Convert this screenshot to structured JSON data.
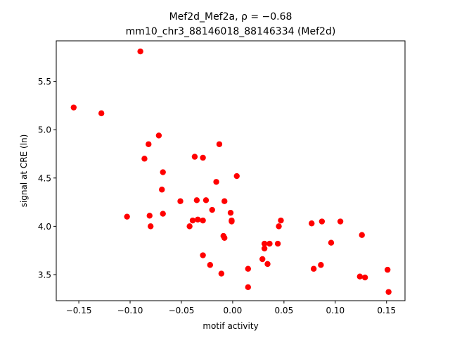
{
  "chart_data": {
    "type": "scatter",
    "title_line1": "Mef2d_Mef2a, ρ = −0.68",
    "title_line2": "mm10_chr3_88146018_88146334 (Mef2d)",
    "xlabel": "motif activity",
    "ylabel": "signal at CRE (ln)",
    "xlim": [
      -0.172,
      0.168
    ],
    "ylim": [
      3.23,
      5.92
    ],
    "xticks": [
      -0.15,
      -0.1,
      -0.05,
      0.0,
      0.05,
      0.1,
      0.15
    ],
    "xtick_labels": [
      "−0.15",
      "−0.10",
      "−0.05",
      "0.00",
      "0.05",
      "0.10",
      "0.15"
    ],
    "yticks": [
      3.5,
      4.0,
      4.5,
      5.0,
      5.5
    ],
    "ytick_labels": [
      "3.5",
      "4.0",
      "4.5",
      "5.0",
      "5.5"
    ],
    "grid": false,
    "marker_color": "#ff0000",
    "points": [
      {
        "x": -0.155,
        "y": 5.23
      },
      {
        "x": -0.128,
        "y": 5.17
      },
      {
        "x": -0.103,
        "y": 4.1
      },
      {
        "x": -0.09,
        "y": 5.81
      },
      {
        "x": -0.086,
        "y": 4.7
      },
      {
        "x": -0.082,
        "y": 4.85
      },
      {
        "x": -0.081,
        "y": 4.11
      },
      {
        "x": -0.08,
        "y": 4.0
      },
      {
        "x": -0.072,
        "y": 4.94
      },
      {
        "x": -0.069,
        "y": 4.38
      },
      {
        "x": -0.068,
        "y": 4.56
      },
      {
        "x": -0.068,
        "y": 4.13
      },
      {
        "x": -0.051,
        "y": 4.26
      },
      {
        "x": -0.042,
        "y": 4.0
      },
      {
        "x": -0.039,
        "y": 4.06
      },
      {
        "x": -0.037,
        "y": 4.72
      },
      {
        "x": -0.035,
        "y": 4.27
      },
      {
        "x": -0.034,
        "y": 4.07
      },
      {
        "x": -0.029,
        "y": 4.71
      },
      {
        "x": -0.029,
        "y": 4.06
      },
      {
        "x": -0.029,
        "y": 3.7
      },
      {
        "x": -0.026,
        "y": 4.27
      },
      {
        "x": -0.022,
        "y": 3.6
      },
      {
        "x": -0.02,
        "y": 4.17
      },
      {
        "x": -0.016,
        "y": 4.46
      },
      {
        "x": -0.013,
        "y": 4.85
      },
      {
        "x": -0.011,
        "y": 3.51
      },
      {
        "x": -0.009,
        "y": 3.9
      },
      {
        "x": -0.008,
        "y": 4.26
      },
      {
        "x": -0.008,
        "y": 3.88
      },
      {
        "x": -0.002,
        "y": 4.14
      },
      {
        "x": -0.001,
        "y": 4.06
      },
      {
        "x": -0.001,
        "y": 4.05
      },
      {
        "x": 0.004,
        "y": 4.52
      },
      {
        "x": 0.015,
        "y": 3.56
      },
      {
        "x": 0.015,
        "y": 3.37
      },
      {
        "x": 0.029,
        "y": 3.66
      },
      {
        "x": 0.031,
        "y": 3.77
      },
      {
        "x": 0.031,
        "y": 3.82
      },
      {
        "x": 0.034,
        "y": 3.61
      },
      {
        "x": 0.036,
        "y": 3.82
      },
      {
        "x": 0.044,
        "y": 3.82
      },
      {
        "x": 0.045,
        "y": 4.0
      },
      {
        "x": 0.047,
        "y": 4.06
      },
      {
        "x": 0.077,
        "y": 4.03
      },
      {
        "x": 0.079,
        "y": 3.56
      },
      {
        "x": 0.086,
        "y": 3.6
      },
      {
        "x": 0.087,
        "y": 4.05
      },
      {
        "x": 0.096,
        "y": 3.83
      },
      {
        "x": 0.105,
        "y": 4.05
      },
      {
        "x": 0.124,
        "y": 3.48
      },
      {
        "x": 0.126,
        "y": 3.91
      },
      {
        "x": 0.129,
        "y": 3.47
      },
      {
        "x": 0.151,
        "y": 3.55
      },
      {
        "x": 0.152,
        "y": 3.32
      }
    ]
  }
}
